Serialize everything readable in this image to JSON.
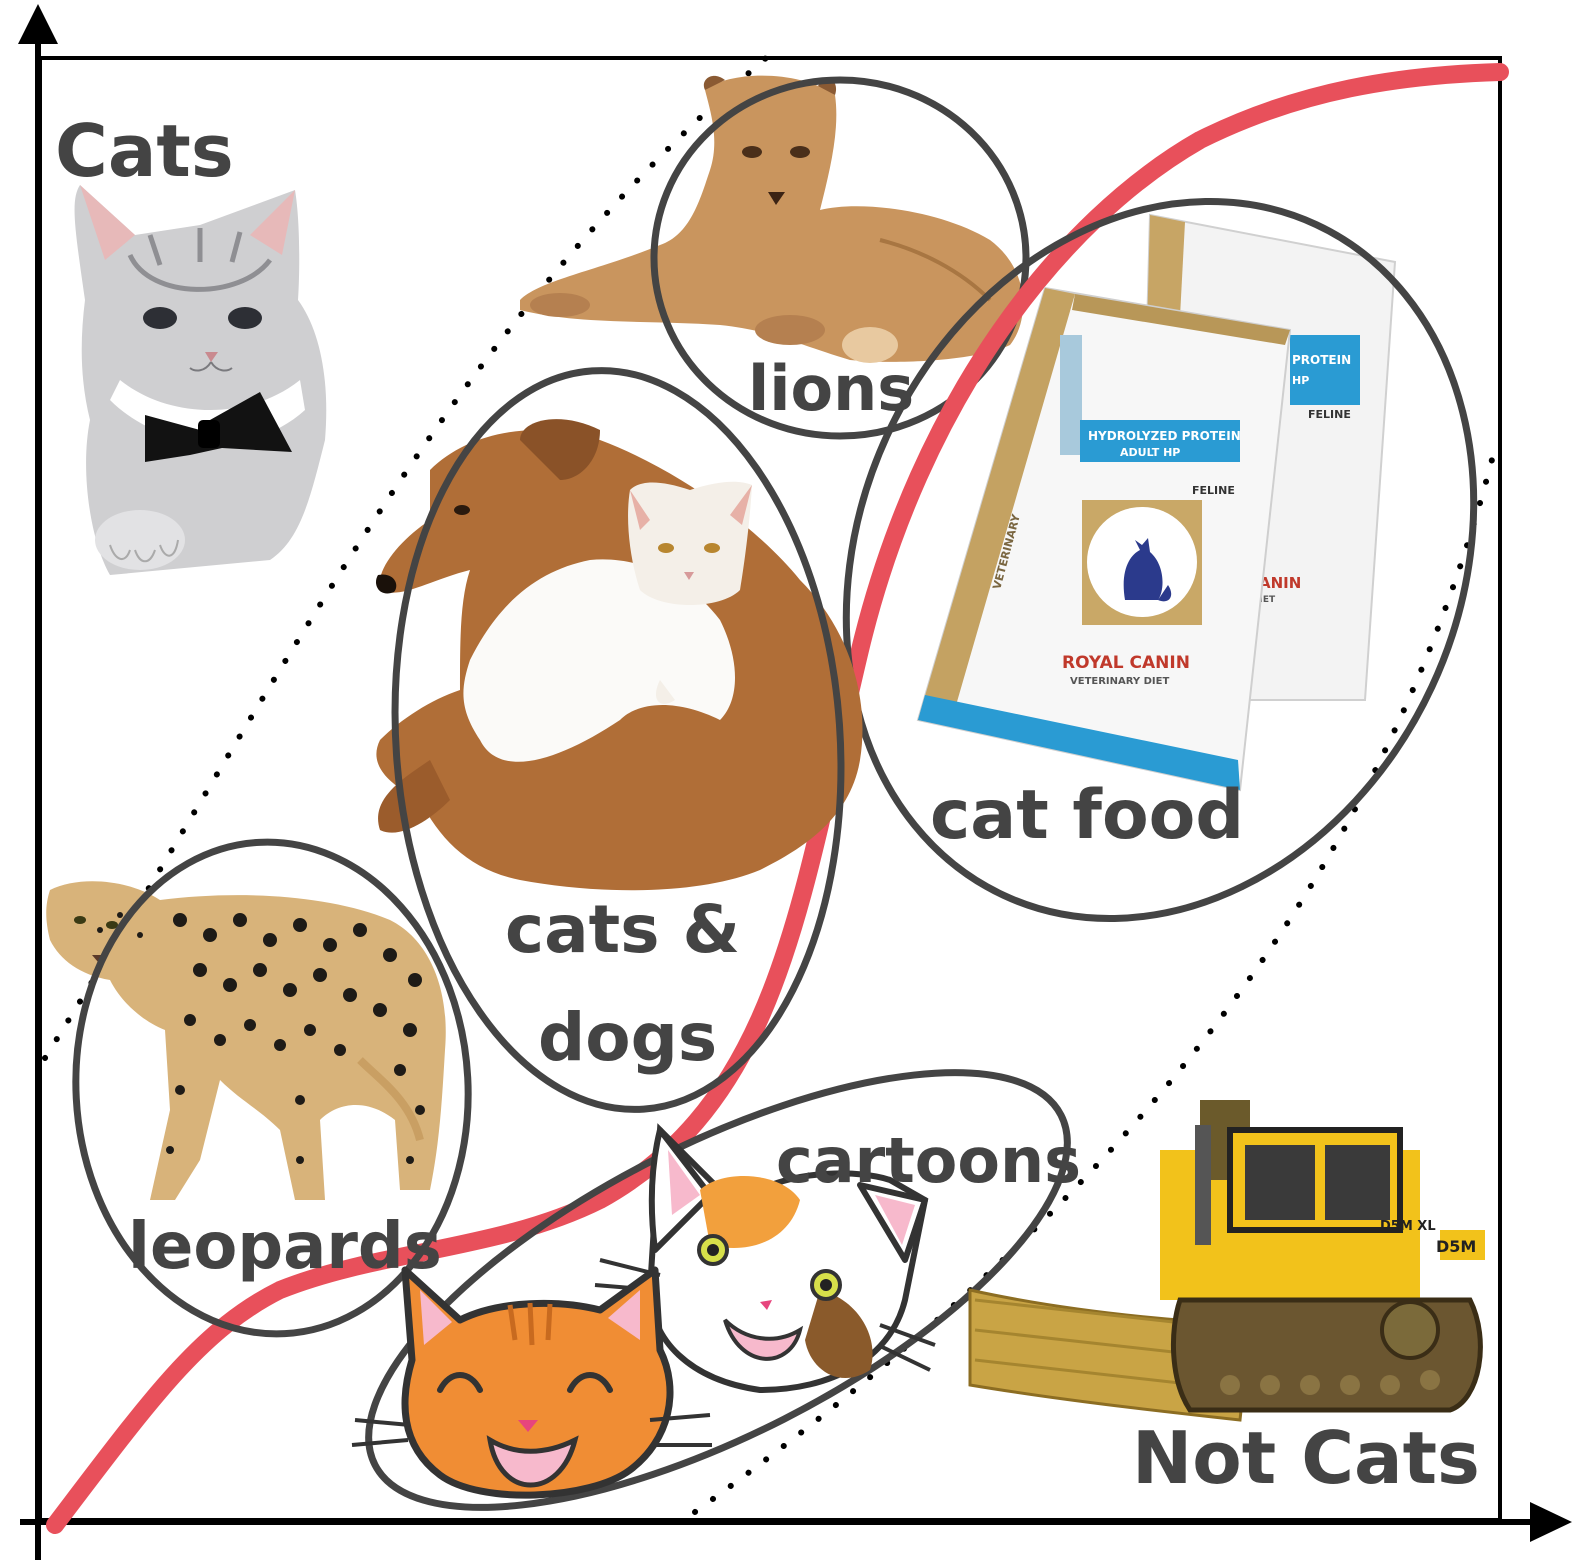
{
  "labels": {
    "cats": "Cats",
    "not_cats": "Not Cats",
    "lions": "lions",
    "cats_dogs_line1": "cats &",
    "cats_dogs_line2": "dogs",
    "cat_food": "cat food",
    "leopards": "leopards",
    "cartoons": "cartoons"
  },
  "packaging_text": {
    "product": "HYDROLYZED PROTEIN",
    "variant": "ADULT HP",
    "species": "FELINE",
    "brand": "ROYAL CANIN",
    "line": "VETERINARY DIET",
    "side": "VETERINARY",
    "back_product": "PROTEIN",
    "back_variant": "HP",
    "back_species": "FELINE",
    "back_brand": "CANIN",
    "back_line": "DIET"
  },
  "bulldozer_text": {
    "model": "D5M",
    "side": "D5M XL"
  },
  "colors": {
    "boundary": "#e8505b",
    "ellipse": "#444444",
    "text": "#444444",
    "axis": "#000000"
  }
}
